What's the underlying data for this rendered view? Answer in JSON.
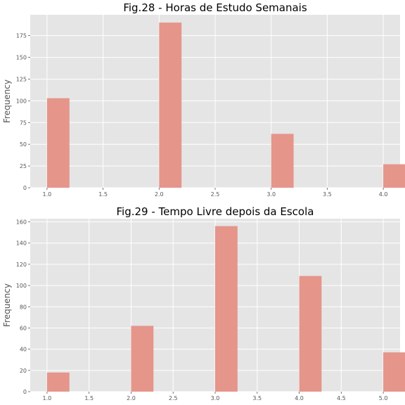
{
  "chart_data": [
    {
      "type": "bar",
      "title": "Fig.28 - Horas de Estudo Semanais",
      "xlabel": "",
      "ylabel": "Frequency",
      "x": [
        1,
        2,
        3,
        4
      ],
      "values": [
        103,
        190,
        62,
        27
      ],
      "bin_width": 0.2,
      "xlim": [
        0.85,
        4.15
      ],
      "ylim": [
        0,
        199
      ],
      "xticks": [
        1.0,
        1.5,
        2.0,
        2.5,
        3.0,
        3.5,
        4.0
      ],
      "xtick_labels": [
        "1.0",
        "1.5",
        "2.0",
        "2.5",
        "3.0",
        "3.5",
        "4.0"
      ],
      "yticks": [
        0,
        25,
        50,
        75,
        100,
        125,
        150,
        175
      ],
      "ytick_labels": [
        "0",
        "25",
        "50",
        "75",
        "100",
        "125",
        "150",
        "175"
      ],
      "grid": true,
      "bar_color": "#E5958A",
      "background": "#E5E5E5"
    },
    {
      "type": "bar",
      "title": "Fig.29 - Tempo Livre depois da Escola",
      "xlabel": "",
      "ylabel": "Frequency",
      "x": [
        1,
        2,
        3,
        4,
        5
      ],
      "values": [
        18,
        62,
        156,
        109,
        37
      ],
      "bin_width": 0.266,
      "xlim": [
        0.8,
        5.2
      ],
      "ylim": [
        0,
        163
      ],
      "xticks": [
        1.0,
        1.5,
        2.0,
        2.5,
        3.0,
        3.5,
        4.0,
        4.5,
        5.0
      ],
      "xtick_labels": [
        "1.0",
        "1.5",
        "2.0",
        "2.5",
        "3.0",
        "3.5",
        "4.0",
        "4.5",
        "5.0"
      ],
      "yticks": [
        0,
        20,
        40,
        60,
        80,
        100,
        120,
        140,
        160
      ],
      "ytick_labels": [
        "0",
        "20",
        "40",
        "60",
        "80",
        "100",
        "120",
        "140",
        "160"
      ],
      "grid": true,
      "bar_color": "#E5958A",
      "background": "#E5E5E5"
    }
  ]
}
